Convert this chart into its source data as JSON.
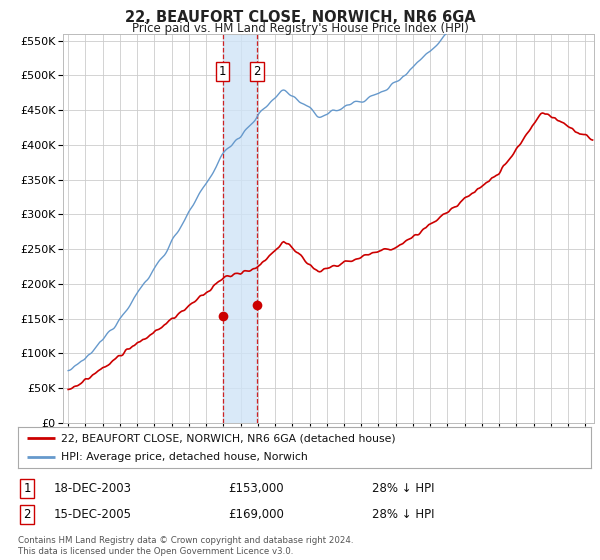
{
  "title": "22, BEAUFORT CLOSE, NORWICH, NR6 6GA",
  "subtitle": "Price paid vs. HM Land Registry's House Price Index (HPI)",
  "ylim": [
    0,
    560000
  ],
  "yticks": [
    0,
    50000,
    100000,
    150000,
    200000,
    250000,
    300000,
    350000,
    400000,
    450000,
    500000,
    550000
  ],
  "hpi_color": "#6699cc",
  "price_color": "#cc0000",
  "sale1_date": 2003.96,
  "sale1_price": 153000,
  "sale2_date": 2005.96,
  "sale2_price": 169000,
  "shade_color": "#d0e4f7",
  "legend_line1": "22, BEAUFORT CLOSE, NORWICH, NR6 6GA (detached house)",
  "legend_line2": "HPI: Average price, detached house, Norwich",
  "table_row1": [
    "1",
    "18-DEC-2003",
    "£153,000",
    "28% ↓ HPI"
  ],
  "table_row2": [
    "2",
    "15-DEC-2005",
    "£169,000",
    "28% ↓ HPI"
  ],
  "footer": "Contains HM Land Registry data © Crown copyright and database right 2024.\nThis data is licensed under the Open Government Licence v3.0.",
  "background_color": "#ffffff",
  "grid_color": "#cccccc"
}
